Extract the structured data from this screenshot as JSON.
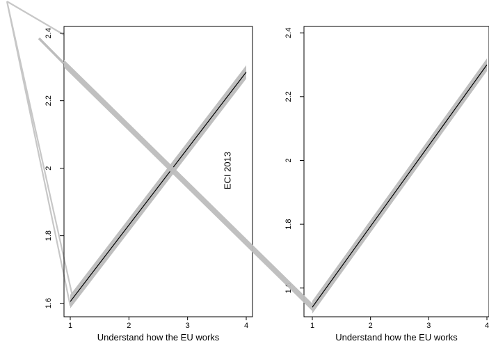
{
  "chart_data": [
    {
      "type": "line",
      "panel_label": "ECI 2013",
      "xlabel": "Understand how the EU works",
      "ylabel": "",
      "xlim": [
        1,
        4
      ],
      "ylim": [
        1.56,
        2.42
      ],
      "x_ticks": [
        1,
        2,
        3,
        4
      ],
      "x_tick_labels": [
        "1",
        "2",
        "3",
        "4"
      ],
      "y_ticks": [
        1.6,
        1.8,
        2.0,
        2.2,
        2.4
      ],
      "y_tick_labels": [
        "1.6",
        "1.8",
        "2",
        "2.2",
        "2.4"
      ],
      "series": [
        {
          "x": [
            1,
            4
          ],
          "y": [
            1.605,
            2.285
          ],
          "ci_lower": [
            1.585,
            2.265
          ],
          "ci_upper": [
            1.625,
            2.305
          ]
        }
      ],
      "grid": false,
      "colors": {
        "line": "#000000",
        "band": "#bfbfbf"
      }
    },
    {
      "type": "line",
      "panel_label": "",
      "xlabel": "Understand how the EU works",
      "ylabel": "",
      "xlim": [
        1,
        4
      ],
      "ylim": [
        1.51,
        2.42
      ],
      "x_ticks": [
        1,
        2,
        3,
        4
      ],
      "x_tick_labels": [
        "1",
        "2",
        "3",
        "4"
      ],
      "y_ticks": [
        1.6,
        1.8,
        2.0,
        2.2,
        2.4
      ],
      "y_tick_labels": [
        "1.6",
        "1.8",
        "2",
        "2.2",
        "2.4"
      ],
      "series": [
        {
          "x": [
            1,
            4
          ],
          "y": [
            1.54,
            2.3
          ],
          "ci_lower": [
            1.52,
            2.28
          ],
          "ci_upper": [
            1.56,
            2.32
          ]
        }
      ],
      "grid": false,
      "colors": {
        "line": "#000000",
        "band": "#bfbfbf"
      }
    }
  ],
  "connectors": [
    {
      "from": {
        "panel": 1,
        "x": 1,
        "y": 1.605
      },
      "to": "top-left corner",
      "stroke": "#c7c7c7",
      "style": "outline"
    },
    {
      "from": {
        "panel": 1,
        "x": 1,
        "y": 2.31
      },
      "to": {
        "panel": 2,
        "x": 1,
        "y": 1.54
      },
      "stroke": "#bdbdbd",
      "style": "band"
    }
  ]
}
